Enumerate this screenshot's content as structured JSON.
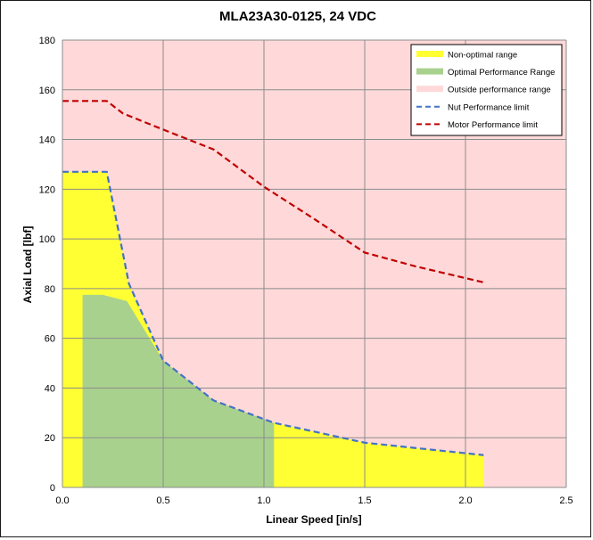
{
  "chart_data": {
    "type": "area",
    "title": "MLA23A30-0125, 24 VDC",
    "xlabel": "Linear Speed [in/s]",
    "ylabel": "Axial Load [lbf]",
    "xlim": [
      0,
      2.5
    ],
    "ylim": [
      0,
      180
    ],
    "x_ticks": [
      "0.0",
      "0.5",
      "1.0",
      "1.5",
      "2.0",
      "2.5"
    ],
    "y_ticks": [
      "0",
      "20",
      "40",
      "60",
      "80",
      "100",
      "120",
      "140",
      "160",
      "180"
    ],
    "grid": true,
    "legend_position": "top-right",
    "background_color": "#ffd9d9",
    "series": [
      {
        "name": "Non-optimal range",
        "type": "area",
        "color": "#ffff33",
        "x": [
          0,
          0.22,
          0.33,
          0.5,
          0.75,
          1.05,
          1.5,
          2.09
        ],
        "y": [
          127,
          127,
          82,
          51,
          35,
          26,
          18,
          13
        ]
      },
      {
        "name": "Optimal Performance Range",
        "type": "area",
        "color": "#a9d18e",
        "x": [
          0.1,
          0.2,
          0.32,
          0.5,
          0.75,
          1.05
        ],
        "y": [
          77.5,
          77.5,
          75,
          51,
          35,
          26
        ]
      },
      {
        "name": "Outside performance range",
        "type": "area",
        "color": "#ffd9d9"
      },
      {
        "name": "Nut Performance limit",
        "type": "line",
        "color": "#4472c4",
        "dash": true,
        "x": [
          0,
          0.22,
          0.33,
          0.5,
          0.75,
          1.05,
          1.5,
          2.09
        ],
        "y": [
          127,
          127,
          82,
          51,
          35,
          26,
          18,
          13
        ]
      },
      {
        "name": "Motor Performance limit",
        "type": "line",
        "color": "#c00000",
        "dash": true,
        "x": [
          0,
          0.22,
          0.3,
          0.5,
          0.75,
          1.0,
          1.25,
          1.5,
          1.75,
          2.09
        ],
        "y": [
          155.5,
          155.5,
          150.5,
          144,
          136,
          121,
          108,
          94.5,
          89,
          82.5
        ]
      }
    ]
  }
}
